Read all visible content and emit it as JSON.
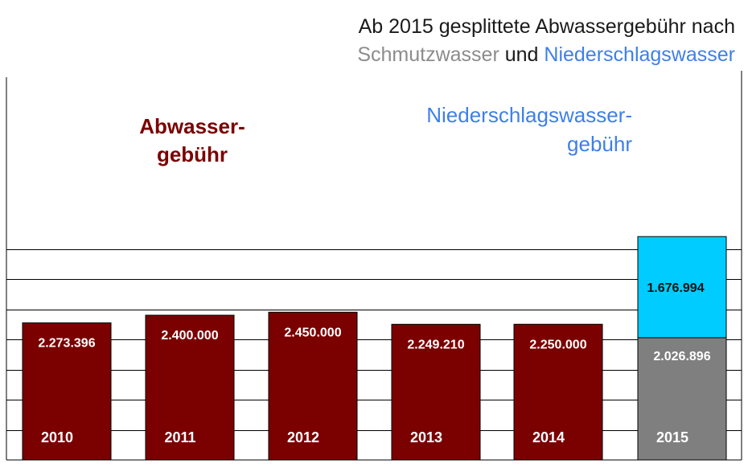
{
  "chart_data": {
    "type": "bar",
    "title_line1": "Ab 2015 gesplittete Abwassergebühr nach",
    "title_line2": {
      "part1": "Schmutzwasser",
      "part2": " und ",
      "part3": "Niederschlagswasser"
    },
    "categories": [
      "2010",
      "2011",
      "2012",
      "2013",
      "2014",
      "2015"
    ],
    "series": [
      {
        "name": "Abwassergebühr",
        "values": [
          2273396,
          2400000,
          2450000,
          2249210,
          2250000,
          null
        ],
        "labels": [
          "2.273.396",
          "2.400.000",
          "2.450.000",
          "2.249.210",
          "2.250.000",
          ""
        ]
      },
      {
        "name": "Schmutzwasser",
        "values": [
          null,
          null,
          null,
          null,
          null,
          2026896
        ],
        "labels": [
          "",
          "",
          "",
          "",
          "",
          "2.026.896"
        ]
      },
      {
        "name": "Niederschlagswasser",
        "values": [
          null,
          null,
          null,
          null,
          null,
          1676994
        ],
        "labels": [
          "",
          "",
          "",
          "",
          "",
          "1.676.994"
        ]
      }
    ],
    "annotations": {
      "abwasser_line1": "Abwasser-",
      "abwasser_line2": "gebühr",
      "nieder_line1": "Niederschlagswasser-",
      "nieder_line2": "gebühr"
    },
    "ylim": [
      0,
      3900000
    ],
    "grid": true,
    "colors": {
      "abwasser": "#7b0000",
      "schmutz": "#7f7f7f",
      "nieder": "#00ccff",
      "nieder_text": "#3f7fe8",
      "schmutz_text": "#8c8c8c",
      "title_text": "#1a1a1a"
    }
  }
}
